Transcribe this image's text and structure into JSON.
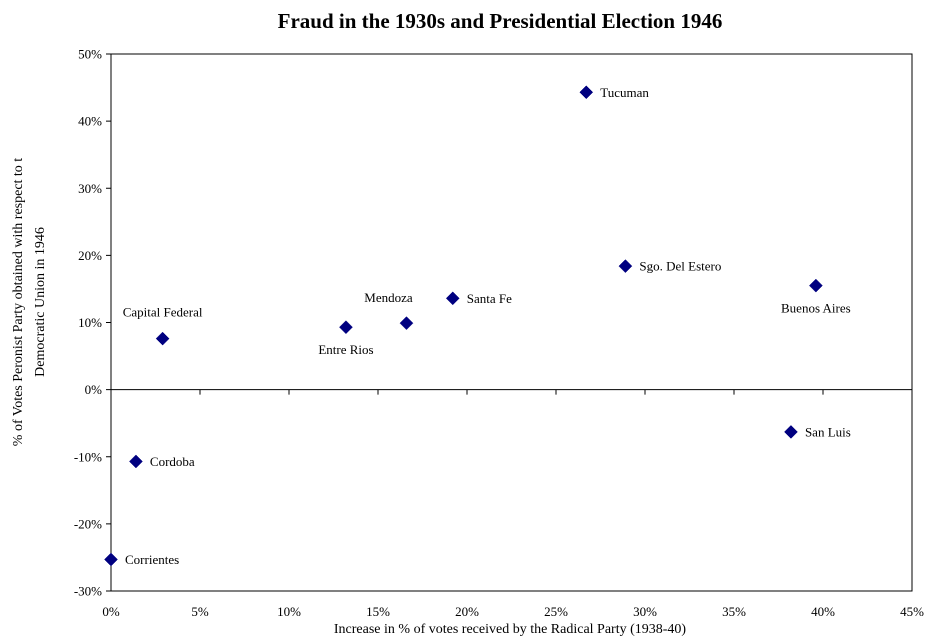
{
  "chart_data": {
    "type": "scatter",
    "title": "Fraud in the 1930s and Presidential Election 1946",
    "xlabel": "Increase in % of votes received by the Radical Party (1938-40)",
    "ylabel_line1": "% of Votes Peronist Party obtained with respect to t",
    "ylabel_line2": "Democratic Union in 1946",
    "xlim": [
      0,
      45
    ],
    "ylim": [
      -30,
      50
    ],
    "x_ticks": [
      0,
      5,
      10,
      15,
      20,
      25,
      30,
      35,
      40,
      45
    ],
    "x_tick_labels": [
      "0%",
      "5%",
      "10%",
      "15%",
      "20%",
      "25%",
      "30%",
      "35%",
      "40%",
      "45%"
    ],
    "y_ticks": [
      -30,
      -20,
      -10,
      0,
      10,
      20,
      30,
      40,
      50
    ],
    "y_tick_labels": [
      "-30%",
      "-20%",
      "-10%",
      "0%",
      "10%",
      "20%",
      "30%",
      "40%",
      "50%"
    ],
    "grid": false,
    "legend": "none",
    "marker": "diamond",
    "marker_color": "#000080",
    "points": [
      {
        "label": "Tucuman",
        "x": 26.7,
        "y": 44.3,
        "label_pos": "right"
      },
      {
        "label": "Sgo. Del Estero",
        "x": 28.9,
        "y": 18.4,
        "label_pos": "right"
      },
      {
        "label": "Buenos Aires",
        "x": 39.6,
        "y": 15.5,
        "label_pos": "below"
      },
      {
        "label": "Santa Fe",
        "x": 19.2,
        "y": 13.6,
        "label_pos": "right"
      },
      {
        "label": "Mendoza",
        "x": 16.6,
        "y": 9.9,
        "label_pos": "above-left"
      },
      {
        "label": "Entre Rios",
        "x": 13.2,
        "y": 9.3,
        "label_pos": "below"
      },
      {
        "label": "Capital Federal",
        "x": 2.9,
        "y": 7.6,
        "label_pos": "above"
      },
      {
        "label": "San Luis",
        "x": 38.2,
        "y": -6.3,
        "label_pos": "right"
      },
      {
        "label": "Cordoba",
        "x": 1.4,
        "y": -10.7,
        "label_pos": "right"
      },
      {
        "label": "Corrientes",
        "x": 0.0,
        "y": -25.3,
        "label_pos": "right"
      }
    ]
  }
}
